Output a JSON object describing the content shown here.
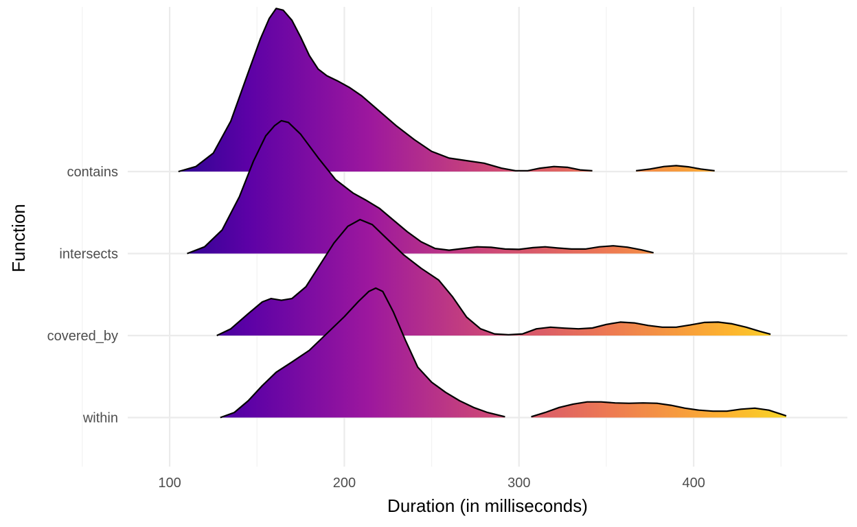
{
  "chart_data": {
    "type": "ridgeline",
    "xlabel": "Duration (in milliseconds)",
    "ylabel": "Function",
    "xlim": [
      76,
      488
    ],
    "x_ticks": [
      100,
      200,
      300,
      400
    ],
    "x_tick_labels": [
      "100",
      "200",
      "300",
      "400"
    ],
    "grid": true,
    "color_scale": {
      "name": "plasma",
      "domain": [
        76,
        488
      ],
      "stops": [
        "#0D0887",
        "#5C01A6",
        "#9C179E",
        "#CC4778",
        "#ED7953",
        "#FDB32F",
        "#F0F921"
      ]
    },
    "series": [
      {
        "name": "contains",
        "segments": [
          [
            [
              105,
              0
            ],
            [
              115,
              0.03
            ],
            [
              125,
              0.11
            ],
            [
              135,
              0.3
            ],
            [
              145,
              0.59
            ],
            [
              152,
              0.79
            ],
            [
              157,
              0.91
            ],
            [
              161,
              0.97
            ],
            [
              165,
              0.96
            ],
            [
              170,
              0.9
            ],
            [
              175,
              0.8
            ],
            [
              180,
              0.69
            ],
            [
              185,
              0.61
            ],
            [
              190,
              0.57
            ],
            [
              196,
              0.54
            ],
            [
              203,
              0.5
            ],
            [
              210,
              0.45
            ],
            [
              220,
              0.36
            ],
            [
              230,
              0.27
            ],
            [
              240,
              0.19
            ],
            [
              250,
              0.12
            ],
            [
              260,
              0.08
            ],
            [
              270,
              0.065
            ],
            [
              280,
              0.05
            ],
            [
              290,
              0.02
            ],
            [
              298,
              0.005
            ],
            [
              305,
              0.005
            ],
            [
              312,
              0.02
            ],
            [
              320,
              0.03
            ],
            [
              328,
              0.025
            ],
            [
              335,
              0.01
            ],
            [
              342,
              0.005
            ]
          ],
          [
            [
              367,
              0.005
            ],
            [
              375,
              0.015
            ],
            [
              383,
              0.03
            ],
            [
              390,
              0.035
            ],
            [
              397,
              0.028
            ],
            [
              404,
              0.015
            ],
            [
              412,
              0.005
            ]
          ]
        ]
      },
      {
        "name": "intersects",
        "segments": [
          [
            [
              110,
              0
            ],
            [
              120,
              0.04
            ],
            [
              130,
              0.14
            ],
            [
              140,
              0.34
            ],
            [
              148,
              0.55
            ],
            [
              155,
              0.7
            ],
            [
              160,
              0.76
            ],
            [
              164,
              0.79
            ],
            [
              168,
              0.78
            ],
            [
              175,
              0.71
            ],
            [
              185,
              0.57
            ],
            [
              195,
              0.44
            ],
            [
              205,
              0.36
            ],
            [
              212,
              0.32
            ],
            [
              220,
              0.27
            ],
            [
              228,
              0.2
            ],
            [
              236,
              0.13
            ],
            [
              244,
              0.07
            ],
            [
              252,
              0.03
            ],
            [
              260,
              0.02
            ],
            [
              268,
              0.03
            ],
            [
              276,
              0.04
            ],
            [
              284,
              0.037
            ],
            [
              292,
              0.027
            ],
            [
              300,
              0.025
            ],
            [
              308,
              0.035
            ],
            [
              315,
              0.04
            ],
            [
              322,
              0.033
            ],
            [
              330,
              0.027
            ],
            [
              338,
              0.027
            ],
            [
              346,
              0.04
            ],
            [
              354,
              0.046
            ],
            [
              362,
              0.038
            ],
            [
              370,
              0.022
            ],
            [
              377,
              0.005
            ]
          ]
        ]
      },
      {
        "name": "covered_by",
        "segments": [
          [
            [
              127,
              0
            ],
            [
              135,
              0.04
            ],
            [
              145,
              0.13
            ],
            [
              153,
              0.2
            ],
            [
              158,
              0.22
            ],
            [
              164,
              0.21
            ],
            [
              170,
              0.22
            ],
            [
              178,
              0.29
            ],
            [
              186,
              0.42
            ],
            [
              194,
              0.55
            ],
            [
              202,
              0.65
            ],
            [
              209,
              0.69
            ],
            [
              216,
              0.66
            ],
            [
              224,
              0.58
            ],
            [
              234,
              0.48
            ],
            [
              244,
              0.4
            ],
            [
              254,
              0.33
            ],
            [
              262,
              0.23
            ],
            [
              270,
              0.11
            ],
            [
              278,
              0.04
            ],
            [
              286,
              0.01
            ],
            [
              294,
              0.005
            ],
            [
              302,
              0.01
            ],
            [
              310,
              0.04
            ],
            [
              318,
              0.05
            ],
            [
              326,
              0.044
            ],
            [
              334,
              0.04
            ],
            [
              342,
              0.045
            ],
            [
              350,
              0.066
            ],
            [
              358,
              0.08
            ],
            [
              366,
              0.075
            ],
            [
              374,
              0.06
            ],
            [
              382,
              0.05
            ],
            [
              390,
              0.05
            ],
            [
              398,
              0.063
            ],
            [
              406,
              0.078
            ],
            [
              414,
              0.08
            ],
            [
              422,
              0.07
            ],
            [
              430,
              0.05
            ],
            [
              438,
              0.025
            ],
            [
              444,
              0.008
            ]
          ]
        ]
      },
      {
        "name": "within",
        "segments": [
          [
            [
              129,
              0
            ],
            [
              137,
              0.03
            ],
            [
              145,
              0.1
            ],
            [
              153,
              0.19
            ],
            [
              161,
              0.27
            ],
            [
              170,
              0.33
            ],
            [
              180,
              0.4
            ],
            [
              190,
              0.5
            ],
            [
              200,
              0.6
            ],
            [
              208,
              0.69
            ],
            [
              214,
              0.75
            ],
            [
              218,
              0.77
            ],
            [
              222,
              0.75
            ],
            [
              228,
              0.63
            ],
            [
              235,
              0.46
            ],
            [
              242,
              0.3
            ],
            [
              250,
              0.21
            ],
            [
              258,
              0.15
            ],
            [
              266,
              0.1
            ],
            [
              274,
              0.06
            ],
            [
              282,
              0.03
            ],
            [
              292,
              0.005
            ]
          ],
          [
            [
              307,
              0.005
            ],
            [
              315,
              0.03
            ],
            [
              323,
              0.06
            ],
            [
              331,
              0.08
            ],
            [
              339,
              0.093
            ],
            [
              347,
              0.093
            ],
            [
              355,
              0.087
            ],
            [
              363,
              0.085
            ],
            [
              371,
              0.087
            ],
            [
              379,
              0.085
            ],
            [
              387,
              0.073
            ],
            [
              395,
              0.056
            ],
            [
              403,
              0.044
            ],
            [
              411,
              0.038
            ],
            [
              419,
              0.038
            ],
            [
              427,
              0.05
            ],
            [
              435,
              0.056
            ],
            [
              443,
              0.044
            ],
            [
              453,
              0.01
            ]
          ]
        ]
      }
    ]
  }
}
